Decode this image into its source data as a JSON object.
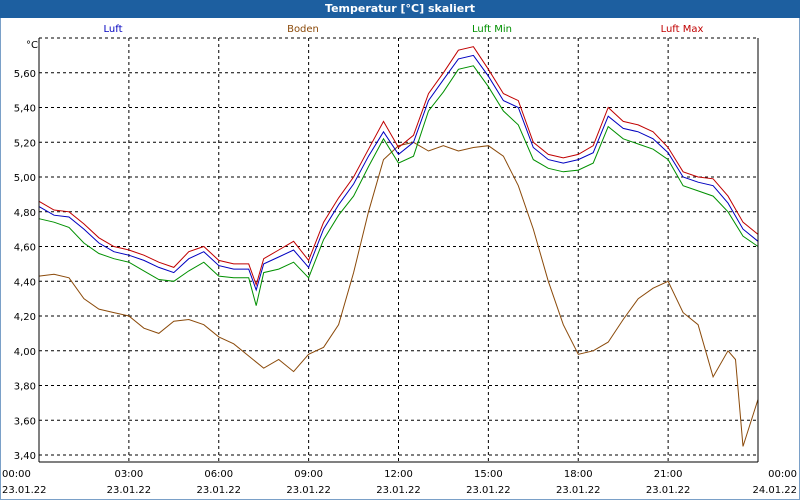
{
  "window": {
    "title": "Temperatur [°C] skaliert"
  },
  "chart_data": {
    "type": "line",
    "title": "Temperatur [°C] skaliert",
    "ylabel": "°C",
    "xlabel": "",
    "ylim": [
      3.36,
      5.8
    ],
    "xlim": [
      0,
      24
    ],
    "grid": true,
    "yticks": [
      3.4,
      3.6,
      3.8,
      4.0,
      4.2,
      4.4,
      4.6,
      4.8,
      5.0,
      5.2,
      5.4,
      5.6
    ],
    "ytick_labels": [
      "3,40",
      "3,60",
      "3,80",
      "4,00",
      "4,20",
      "4,40",
      "4,60",
      "4,80",
      "5,00",
      "5,20",
      "5,40",
      "5,60"
    ],
    "xticks": [
      {
        "h": 0,
        "time": "00:00",
        "date": "23.01.22"
      },
      {
        "h": 3,
        "time": "03:00",
        "date": "23.01.22"
      },
      {
        "h": 6,
        "time": "06:00",
        "date": "23.01.22"
      },
      {
        "h": 9,
        "time": "09:00",
        "date": "23.01.22"
      },
      {
        "h": 12,
        "time": "12:00",
        "date": "23.01.22"
      },
      {
        "h": 15,
        "time": "15:00",
        "date": "23.01.22"
      },
      {
        "h": 18,
        "time": "18:00",
        "date": "23.01.22"
      },
      {
        "h": 21,
        "time": "21:00",
        "date": "23.01.22"
      },
      {
        "h": 24,
        "time": "00:00",
        "date": "24.01.22"
      }
    ],
    "series": [
      {
        "name": "Luft",
        "color": "#0000c0",
        "x": [
          0,
          0.5,
          1,
          1.5,
          2,
          2.5,
          3,
          3.5,
          4,
          4.5,
          5,
          5.5,
          6,
          6.5,
          7,
          7.25,
          7.5,
          8,
          8.5,
          9,
          9.5,
          10,
          10.5,
          11,
          11.5,
          12,
          12.5,
          13,
          13.5,
          14,
          14.5,
          15,
          15.5,
          16,
          16.5,
          17,
          17.5,
          18,
          18.5,
          19,
          19.5,
          20,
          20.5,
          21,
          21.5,
          22,
          22.5,
          23,
          23.5,
          24
        ],
        "values": [
          4.83,
          4.78,
          4.77,
          4.7,
          4.62,
          4.57,
          4.55,
          4.52,
          4.48,
          4.45,
          4.53,
          4.57,
          4.49,
          4.47,
          4.47,
          4.35,
          4.5,
          4.54,
          4.58,
          4.48,
          4.7,
          4.84,
          4.96,
          5.12,
          5.26,
          5.13,
          5.2,
          5.44,
          5.56,
          5.68,
          5.7,
          5.58,
          5.44,
          5.4,
          5.17,
          5.1,
          5.08,
          5.1,
          5.14,
          5.35,
          5.28,
          5.26,
          5.22,
          5.14,
          5.0,
          4.97,
          4.95,
          4.85,
          4.7,
          4.63
        ]
      },
      {
        "name": "Boden",
        "color": "#8b4a0a",
        "x": [
          0,
          0.5,
          1,
          1.5,
          2,
          2.5,
          3,
          3.5,
          4,
          4.5,
          5,
          5.5,
          6,
          6.5,
          7,
          7.5,
          8,
          8.5,
          9,
          9.5,
          10,
          10.5,
          11,
          11.5,
          12,
          12.5,
          13,
          13.5,
          14,
          14.5,
          15,
          15.5,
          16,
          16.5,
          17,
          17.5,
          18,
          18.5,
          19,
          19.5,
          20,
          20.5,
          21,
          21.5,
          22,
          22.5,
          23,
          23.25,
          23.5,
          24
        ],
        "values": [
          4.43,
          4.44,
          4.42,
          4.3,
          4.24,
          4.22,
          4.2,
          4.13,
          4.1,
          4.17,
          4.18,
          4.15,
          4.08,
          4.04,
          3.97,
          3.9,
          3.95,
          3.88,
          3.98,
          4.02,
          4.15,
          4.45,
          4.8,
          5.1,
          5.18,
          5.2,
          5.15,
          5.18,
          5.15,
          5.17,
          5.18,
          5.12,
          4.95,
          4.7,
          4.4,
          4.15,
          3.98,
          4.0,
          4.05,
          4.18,
          4.3,
          4.36,
          4.4,
          4.22,
          4.15,
          3.85,
          4.0,
          3.95,
          3.45,
          3.72
        ]
      },
      {
        "name": "Luft Min",
        "color": "#009000",
        "x": [
          0,
          0.5,
          1,
          1.5,
          2,
          2.5,
          3,
          3.5,
          4,
          4.5,
          5,
          5.5,
          6,
          6.5,
          7,
          7.25,
          7.5,
          8,
          8.5,
          9,
          9.5,
          10,
          10.5,
          11,
          11.5,
          12,
          12.5,
          13,
          13.5,
          14,
          14.5,
          15,
          15.5,
          16,
          16.5,
          17,
          17.5,
          18,
          18.5,
          19,
          19.5,
          20,
          20.5,
          21,
          21.5,
          22,
          22.5,
          23,
          23.5,
          24
        ],
        "values": [
          4.76,
          4.74,
          4.71,
          4.62,
          4.56,
          4.53,
          4.51,
          4.46,
          4.41,
          4.4,
          4.46,
          4.51,
          4.43,
          4.42,
          4.42,
          4.26,
          4.45,
          4.47,
          4.51,
          4.42,
          4.64,
          4.78,
          4.89,
          5.06,
          5.22,
          5.08,
          5.12,
          5.38,
          5.49,
          5.62,
          5.64,
          5.52,
          5.38,
          5.3,
          5.1,
          5.05,
          5.03,
          5.04,
          5.08,
          5.29,
          5.22,
          5.19,
          5.16,
          5.1,
          4.95,
          4.92,
          4.89,
          4.8,
          4.66,
          4.6
        ]
      },
      {
        "name": "Luft Max",
        "color": "#c00000",
        "x": [
          0,
          0.5,
          1,
          1.5,
          2,
          2.5,
          3,
          3.5,
          4,
          4.5,
          5,
          5.5,
          6,
          6.5,
          7,
          7.25,
          7.5,
          8,
          8.5,
          9,
          9.5,
          10,
          10.5,
          11,
          11.5,
          12,
          12.5,
          13,
          13.5,
          14,
          14.5,
          15,
          15.5,
          16,
          16.5,
          17,
          17.5,
          18,
          18.5,
          19,
          19.5,
          20,
          20.5,
          21,
          21.5,
          22,
          22.5,
          23,
          23.5,
          24
        ],
        "values": [
          4.86,
          4.81,
          4.8,
          4.73,
          4.65,
          4.6,
          4.58,
          4.55,
          4.51,
          4.48,
          4.57,
          4.6,
          4.52,
          4.5,
          4.5,
          4.38,
          4.53,
          4.58,
          4.63,
          4.52,
          4.74,
          4.88,
          5.0,
          5.16,
          5.32,
          5.17,
          5.24,
          5.48,
          5.6,
          5.73,
          5.75,
          5.62,
          5.48,
          5.44,
          5.2,
          5.13,
          5.11,
          5.13,
          5.18,
          5.4,
          5.32,
          5.3,
          5.26,
          5.17,
          5.03,
          5.0,
          4.99,
          4.89,
          4.74,
          4.67
        ]
      }
    ]
  }
}
